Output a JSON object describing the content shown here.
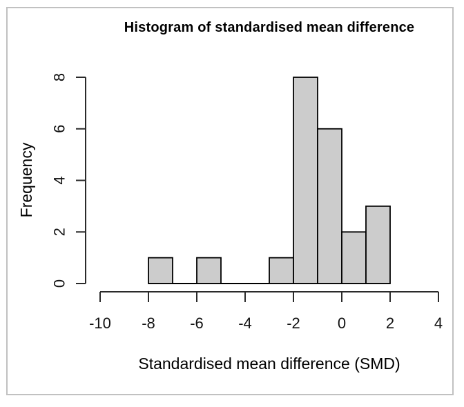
{
  "figure": {
    "kind": "R base-graphics histogram figure with light gray outer frame"
  },
  "chart_data": {
    "type": "bar",
    "title": "Histogram of standardised mean difference",
    "xlabel": "Standardised mean difference (SMD)",
    "ylabel": "Frequency",
    "bins": [
      {
        "start": -8,
        "end": -7,
        "count": 1
      },
      {
        "start": -7,
        "end": -6,
        "count": 0
      },
      {
        "start": -6,
        "end": -5,
        "count": 1
      },
      {
        "start": -5,
        "end": -4,
        "count": 0
      },
      {
        "start": -4,
        "end": -3,
        "count": 0
      },
      {
        "start": -3,
        "end": -2,
        "count": 1
      },
      {
        "start": -2,
        "end": -1,
        "count": 8
      },
      {
        "start": -1,
        "end": 0,
        "count": 6
      },
      {
        "start": 0,
        "end": 1,
        "count": 2
      },
      {
        "start": 1,
        "end": 2,
        "count": 3
      }
    ],
    "x_ticks": [
      "-10",
      "-8",
      "-6",
      "-4",
      "-2",
      "0",
      "2",
      "4"
    ],
    "x_tick_values": [
      -10,
      -8,
      -6,
      -4,
      -2,
      0,
      2,
      4
    ],
    "y_ticks": [
      "0",
      "2",
      "4",
      "6",
      "8"
    ],
    "y_tick_values": [
      0,
      2,
      4,
      6,
      8
    ],
    "xlim": [
      -10,
      4
    ],
    "ylim": [
      0,
      8
    ],
    "grid": false,
    "legend_position": "none",
    "bar_fill": "#cccccc",
    "bar_stroke": "#000000",
    "axis_color": "#2a2a2a",
    "frame_border_color": "#c1c1c1",
    "background_color": "#ffffff"
  }
}
